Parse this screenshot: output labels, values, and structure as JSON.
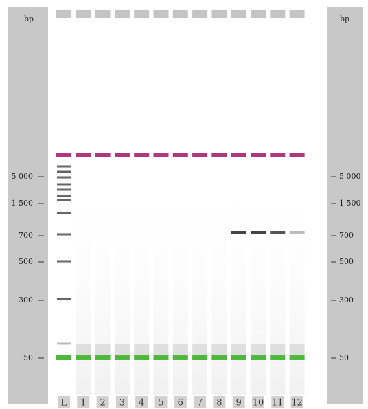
{
  "axis_unit": "bp",
  "left_ticks": [
    "5 000",
    "1 500",
    "700",
    "500",
    "300",
    "50"
  ],
  "right_ticks": [
    "5 000",
    "1 500",
    "700",
    "500",
    "300",
    "50"
  ],
  "lanes": [
    "L",
    "1",
    "2",
    "3",
    "4",
    "5",
    "6",
    "7",
    "8",
    "9",
    "10",
    "11",
    "12"
  ]
}
